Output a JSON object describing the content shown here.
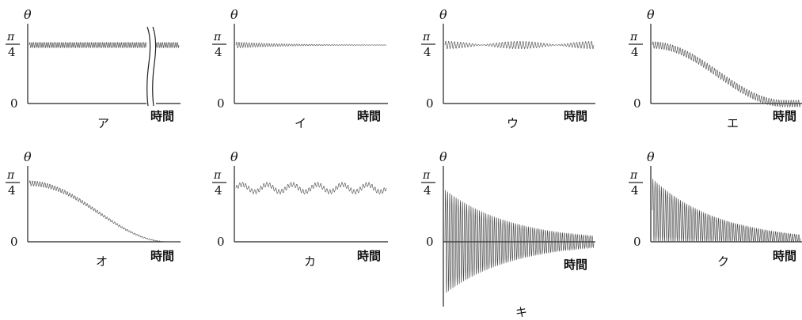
{
  "chart_data": [
    {
      "id": "a",
      "type": "line",
      "label": "ア",
      "ylabel": "θ",
      "xlabel": "時間",
      "yticks": {
        "zero": "0",
        "pi": "π",
        "denominator": "4"
      },
      "mean": 0.785,
      "amplitude": 0.035,
      "decay": 0,
      "cycles": 80,
      "envelope": "constant",
      "axis_break": true
    },
    {
      "id": "b",
      "type": "line",
      "label": "イ",
      "ylabel": "θ",
      "xlabel": "時間",
      "yticks": {
        "zero": "0",
        "pi": "π",
        "denominator": "4"
      },
      "mean": 0.785,
      "amplitude": 0.04,
      "decay": 3,
      "cycles": 60,
      "envelope": "decaying"
    },
    {
      "id": "c",
      "type": "line",
      "label": "ウ",
      "ylabel": "θ",
      "xlabel": "時間",
      "yticks": {
        "zero": "0",
        "pi": "π",
        "denominator": "4"
      },
      "mean": 0.785,
      "amplitude": 0.05,
      "decay": 0,
      "cycles": 50,
      "envelope": "beating",
      "beats": 2
    },
    {
      "id": "d",
      "type": "line",
      "label": "エ",
      "ylabel": "θ",
      "xlabel": "時間",
      "yticks": {
        "zero": "0",
        "pi": "π",
        "denominator": "4"
      },
      "mean": 0.785,
      "amplitude": 0.045,
      "decay": 0,
      "cycles": 60,
      "envelope": "cosine-drift"
    },
    {
      "id": "e",
      "type": "line",
      "label": "オ",
      "ylabel": "θ",
      "xlabel": "時間",
      "yticks": {
        "zero": "0",
        "pi": "π",
        "denominator": "4"
      },
      "mean": 0.785,
      "amplitude": 0.035,
      "decay": 0,
      "cycles": 60,
      "envelope": "cosine-drift-shrinking"
    },
    {
      "id": "f",
      "type": "line",
      "label": "カ",
      "ylabel": "θ",
      "xlabel": "時間",
      "yticks": {
        "zero": "0",
        "pi": "π",
        "denominator": "4"
      },
      "mean": 0.72,
      "amplitude": 0.03,
      "decay": 0,
      "cycles": 50,
      "envelope": "wavy",
      "waves": 6,
      "wave_amplitude": 0.05
    },
    {
      "id": "g",
      "type": "line",
      "label": "キ",
      "ylabel": "θ",
      "xlabel": "時間",
      "yticks": {
        "zero": "0",
        "pi": "π",
        "denominator": "4"
      },
      "mean": 0.0,
      "amplitude": 0.7,
      "decay": 2.2,
      "cycles": 70,
      "envelope": "decaying-symmetric"
    },
    {
      "id": "h",
      "type": "line",
      "label": "ク",
      "ylabel": "θ",
      "xlabel": "時間",
      "yticks": {
        "zero": "0",
        "pi": "π",
        "denominator": "4"
      },
      "mean": 0.0,
      "amplitude": 0.85,
      "decay": 2.2,
      "cycles": 70,
      "envelope": "decaying-positive"
    }
  ]
}
